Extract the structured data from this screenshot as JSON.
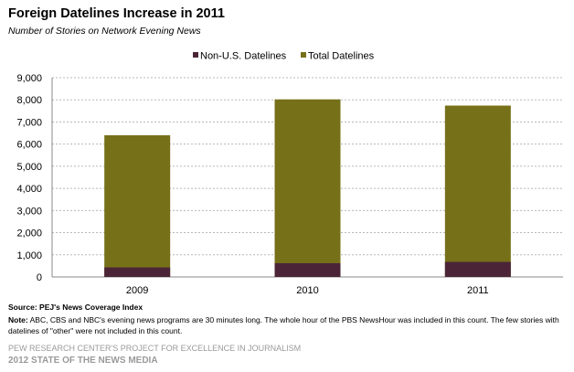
{
  "header": {
    "title": "Foreign Datelines Increase in 2011",
    "subtitle": "Number of Stories on Network Evening News"
  },
  "colors": {
    "non_us": "#4b2537",
    "total": "#767018",
    "grid": "#b8b8b8",
    "footer_text": "#9a9a9a"
  },
  "chart_data": {
    "type": "bar",
    "stacked": "overlapping",
    "categories": [
      "2009",
      "2010",
      "2011"
    ],
    "series": [
      {
        "name": "Non-U.S. Datelines",
        "values": [
          430,
          620,
          680
        ]
      },
      {
        "name": "Total Datelines",
        "values": [
          6400,
          8020,
          7740
        ]
      }
    ],
    "ylim": [
      0,
      9000
    ],
    "yticks": [
      "0",
      "1,000",
      "2,000",
      "3,000",
      "4,000",
      "5,000",
      "6,000",
      "7,000",
      "8,000",
      "9,000"
    ],
    "grid": true,
    "legend_position": "top-center",
    "xlabel": "",
    "ylabel": ""
  },
  "footer": {
    "source_label": "Source:",
    "source_text": "PEJ's News Coverage Index",
    "note_label": "Note:",
    "note_text": "ABC, CBS and NBC's evening news programs are 30 minutes long. The whole hour of the PBS NewsHour was included in this count. The few stories with datelines of \"other\" were not included in this count.",
    "org": "PEW RESEARCH CENTER'S PROJECT FOR EXCELLENCE IN JOURNALISM",
    "report": "2012 STATE OF THE NEWS MEDIA"
  }
}
